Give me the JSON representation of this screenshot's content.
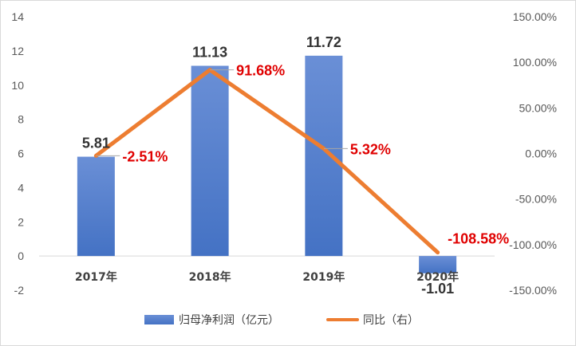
{
  "chart_data": {
    "type": "bar",
    "categories": [
      "2017年",
      "2018年",
      "2019年",
      "2020年"
    ],
    "series": [
      {
        "name": "归母净利润（亿元）",
        "type": "bar",
        "axis": "left",
        "values": [
          5.81,
          11.13,
          11.72,
          -1.01
        ],
        "labels": [
          "5.81",
          "11.13",
          "11.72",
          "-1.01"
        ],
        "color": "#4472c4"
      },
      {
        "name": "同比（右）",
        "type": "line",
        "axis": "right",
        "values": [
          -2.51,
          91.68,
          5.32,
          -108.58
        ],
        "labels": [
          "-2.51%",
          "91.68%",
          "5.32%",
          "-108.58%"
        ],
        "color": "#ed7d31",
        "label_color": "#e00000"
      }
    ],
    "y_left": {
      "ylim": [
        -2,
        14
      ],
      "ticks": [
        -2,
        0,
        2,
        4,
        6,
        8,
        10,
        12,
        14
      ],
      "tick_labels": [
        "-2",
        "0",
        "2",
        "4",
        "6",
        "8",
        "10",
        "12",
        "14"
      ]
    },
    "y_right": {
      "ylim": [
        -150,
        150
      ],
      "ticks": [
        -150,
        -100,
        -50,
        0,
        50,
        100,
        150
      ],
      "tick_labels": [
        "-150.00%",
        "-100.00%",
        "-50.00%",
        "0.00%",
        "50.00%",
        "100.00%",
        "150.00%"
      ]
    },
    "grid": false,
    "legend": "bottom"
  }
}
